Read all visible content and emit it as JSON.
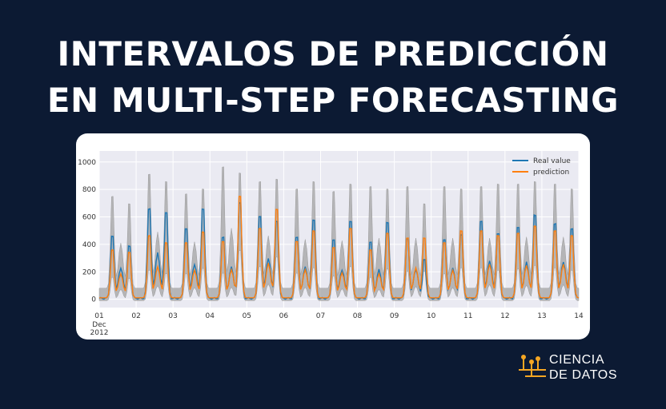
{
  "header": {
    "line1": "INTERVALOS DE PREDICCIÓN",
    "line2": "EN MULTI-STEP FORECASTING"
  },
  "colors": {
    "background": "#0c1a33",
    "real": "#1f77b4",
    "prediction": "#ff7f0e",
    "interval": "#a8a8a8",
    "plot_bg": "#eaeaf2",
    "brand_accent": "#f5a623"
  },
  "chart_data": {
    "type": "line",
    "x_ticks": [
      "01",
      "02",
      "03",
      "04",
      "05",
      "06",
      "07",
      "08",
      "09",
      "10",
      "11",
      "12",
      "13",
      "14"
    ],
    "x_tick_sub": [
      "Dec",
      "2012"
    ],
    "y_ticks": [
      0,
      200,
      400,
      600,
      800,
      1000
    ],
    "ylim": [
      -60,
      1080
    ],
    "xlim": [
      0,
      13
    ],
    "grid": true,
    "legend_position": "top-right",
    "series": [
      {
        "name": "Real value",
        "color": "#1f77b4"
      },
      {
        "name": "prediction",
        "color": "#ff7f0e"
      }
    ],
    "interval_fill": true,
    "daily_peaks": {
      "real": [
        [
          500,
          420
        ],
        [
          730,
          700
        ],
        [
          560,
          720
        ],
        [
          500,
          780
        ],
        [
          660,
          620
        ],
        [
          500,
          640
        ],
        [
          470,
          620
        ],
        [
          460,
          620
        ],
        [
          480,
          310
        ],
        [
          480,
          520
        ],
        [
          620,
          520
        ],
        [
          580,
          680
        ],
        [
          600,
          560
        ],
        [
          590,
          540
        ]
      ],
      "prediction": [
        [
          400,
          380
        ],
        [
          520,
          460
        ],
        [
          460,
          550
        ],
        [
          470,
          850
        ],
        [
          580,
          740
        ],
        [
          470,
          560
        ],
        [
          420,
          580
        ],
        [
          400,
          540
        ],
        [
          500,
          500
        ],
        [
          460,
          560
        ],
        [
          560,
          520
        ],
        [
          540,
          600
        ],
        [
          560,
          520
        ],
        [
          560,
          540
        ]
      ],
      "upper": [
        [
          760,
          700
        ],
        [
          940,
          880
        ],
        [
          780,
          820
        ],
        [
          1000,
          950
        ],
        [
          880,
          900
        ],
        [
          820,
          880
        ],
        [
          800,
          860
        ],
        [
          840,
          820
        ],
        [
          840,
          700
        ],
        [
          840,
          820
        ],
        [
          840,
          860
        ],
        [
          860,
          880
        ],
        [
          860,
          820
        ],
        [
          860,
          820
        ]
      ]
    }
  },
  "brand": {
    "line1": "CIENCIA",
    "line2": "DE DATOS"
  }
}
